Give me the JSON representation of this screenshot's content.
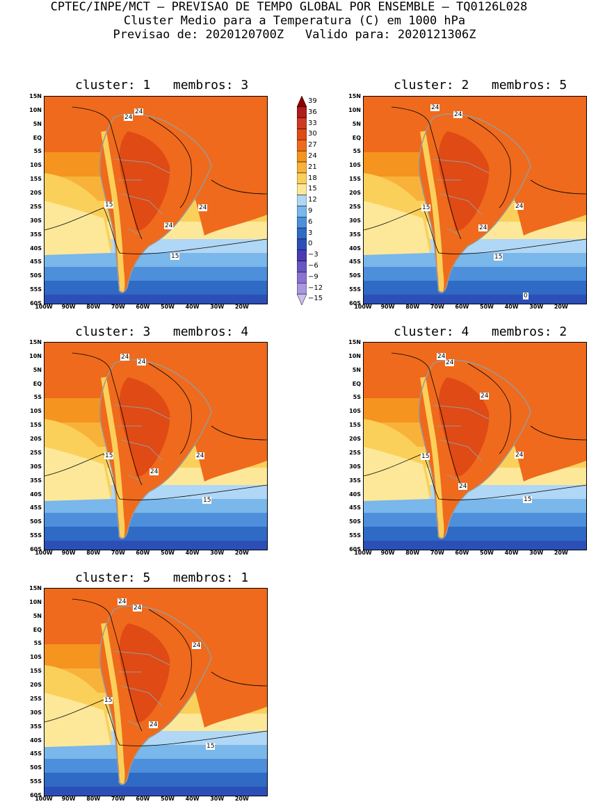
{
  "header": {
    "line1": "CPTEC/INPE/MCT — PREVISAO DE TEMPO GLOBAL POR ENSEMBLE — TQ0126L028",
    "line2": "Cluster Medio para a Temperatura (C) em 1000 hPa",
    "line3": "Previsao de: 2020120700Z   Valido para: 2020121306Z"
  },
  "axes": {
    "lat_ticks": [
      "15N",
      "10N",
      "5N",
      "EQ",
      "5S",
      "10S",
      "15S",
      "20S",
      "25S",
      "30S",
      "35S",
      "40S",
      "45S",
      "50S",
      "55S",
      "60S"
    ],
    "lon_ticks": [
      "100W",
      "90W",
      "80W",
      "70W",
      "60W",
      "50W",
      "40W",
      "30W",
      "20W"
    ]
  },
  "colorbar": {
    "labels": [
      "39",
      "36",
      "33",
      "30",
      "27",
      "24",
      "21",
      "18",
      "15",
      "12",
      "9",
      "6",
      "3",
      "0",
      "−3",
      "−6",
      "−9",
      "−12",
      "−15"
    ],
    "colors": [
      "#8b0000",
      "#b01c1c",
      "#cc3a22",
      "#e04a14",
      "#ef6a1c",
      "#f5941f",
      "#f8b23a",
      "#fbd05a",
      "#fde89a",
      "#b0d7f5",
      "#7ab7ea",
      "#4d8fdb",
      "#2f6ac4",
      "#2c4fb7",
      "#4a3bb3",
      "#6a55c4",
      "#8a72d2",
      "#ab96e0",
      "#cdbdef"
    ]
  },
  "chart_data": {
    "type": "heatmap",
    "title": "Cluster Medio para a Temperatura (C) em 1000 hPa",
    "variable": "Temperatura (C) em 1000 hPa",
    "lat_range": [
      "60S",
      "15N"
    ],
    "lon_range": [
      "100W",
      "20W"
    ],
    "contour_levels": [
      -15,
      -12,
      -9,
      -6,
      -3,
      0,
      3,
      6,
      9,
      12,
      15,
      18,
      21,
      24,
      27,
      30,
      33,
      36,
      39
    ],
    "panels": [
      {
        "cluster": "1",
        "membros": "3",
        "title": "cluster: 1   membros: 3",
        "contour_labels": [
          "24",
          "24",
          "15",
          "24",
          "24",
          "15"
        ]
      },
      {
        "cluster": "2",
        "membros": "5",
        "title": "cluster: 2   membros: 5",
        "contour_labels": [
          "24",
          "24",
          "15",
          "24",
          "24",
          "15",
          "0"
        ]
      },
      {
        "cluster": "3",
        "membros": "4",
        "title": "cluster: 3   membros: 4",
        "contour_labels": [
          "24",
          "24",
          "15",
          "24",
          "24",
          "15"
        ]
      },
      {
        "cluster": "4",
        "membros": "2",
        "title": "cluster: 4   membros: 2",
        "contour_labels": [
          "24",
          "24",
          "24",
          "15",
          "24",
          "24",
          "15"
        ]
      },
      {
        "cluster": "5",
        "membros": "1",
        "title": "cluster: 5   membros: 1",
        "contour_labels": [
          "24",
          "24",
          "24",
          "15",
          "24",
          "15"
        ]
      }
    ]
  }
}
